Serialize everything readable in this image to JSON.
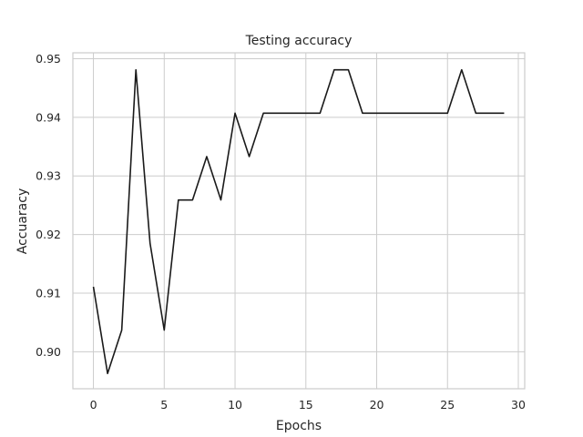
{
  "chart_data": {
    "type": "line",
    "title": "Testing accuracy",
    "xlabel": "Epochs",
    "ylabel": "Accuaracy",
    "xlim": [
      -1.45,
      30.45
    ],
    "ylim": [
      0.8937,
      0.951
    ],
    "xticks": [
      0,
      5,
      10,
      15,
      20,
      25,
      30
    ],
    "yticks": [
      0.9,
      0.91,
      0.92,
      0.93,
      0.94,
      0.95
    ],
    "grid": true,
    "series": [
      {
        "color": "#1a1a1a",
        "x": [
          0,
          1,
          2,
          3,
          4,
          5,
          6,
          7,
          8,
          9,
          10,
          11,
          12,
          13,
          14,
          15,
          16,
          17,
          18,
          19,
          20,
          21,
          22,
          23,
          24,
          25,
          26,
          27,
          28,
          29
        ],
        "y": [
          0.9111,
          0.8963,
          0.9037,
          0.9481,
          0.9185,
          0.9037,
          0.9259,
          0.9259,
          0.9333,
          0.9259,
          0.9407,
          0.9333,
          0.9407,
          0.9407,
          0.9407,
          0.9407,
          0.9407,
          0.9481,
          0.9481,
          0.9407,
          0.9407,
          0.9407,
          0.9407,
          0.9407,
          0.9407,
          0.9407,
          0.9481,
          0.9407,
          0.9407,
          0.9407
        ]
      }
    ]
  }
}
